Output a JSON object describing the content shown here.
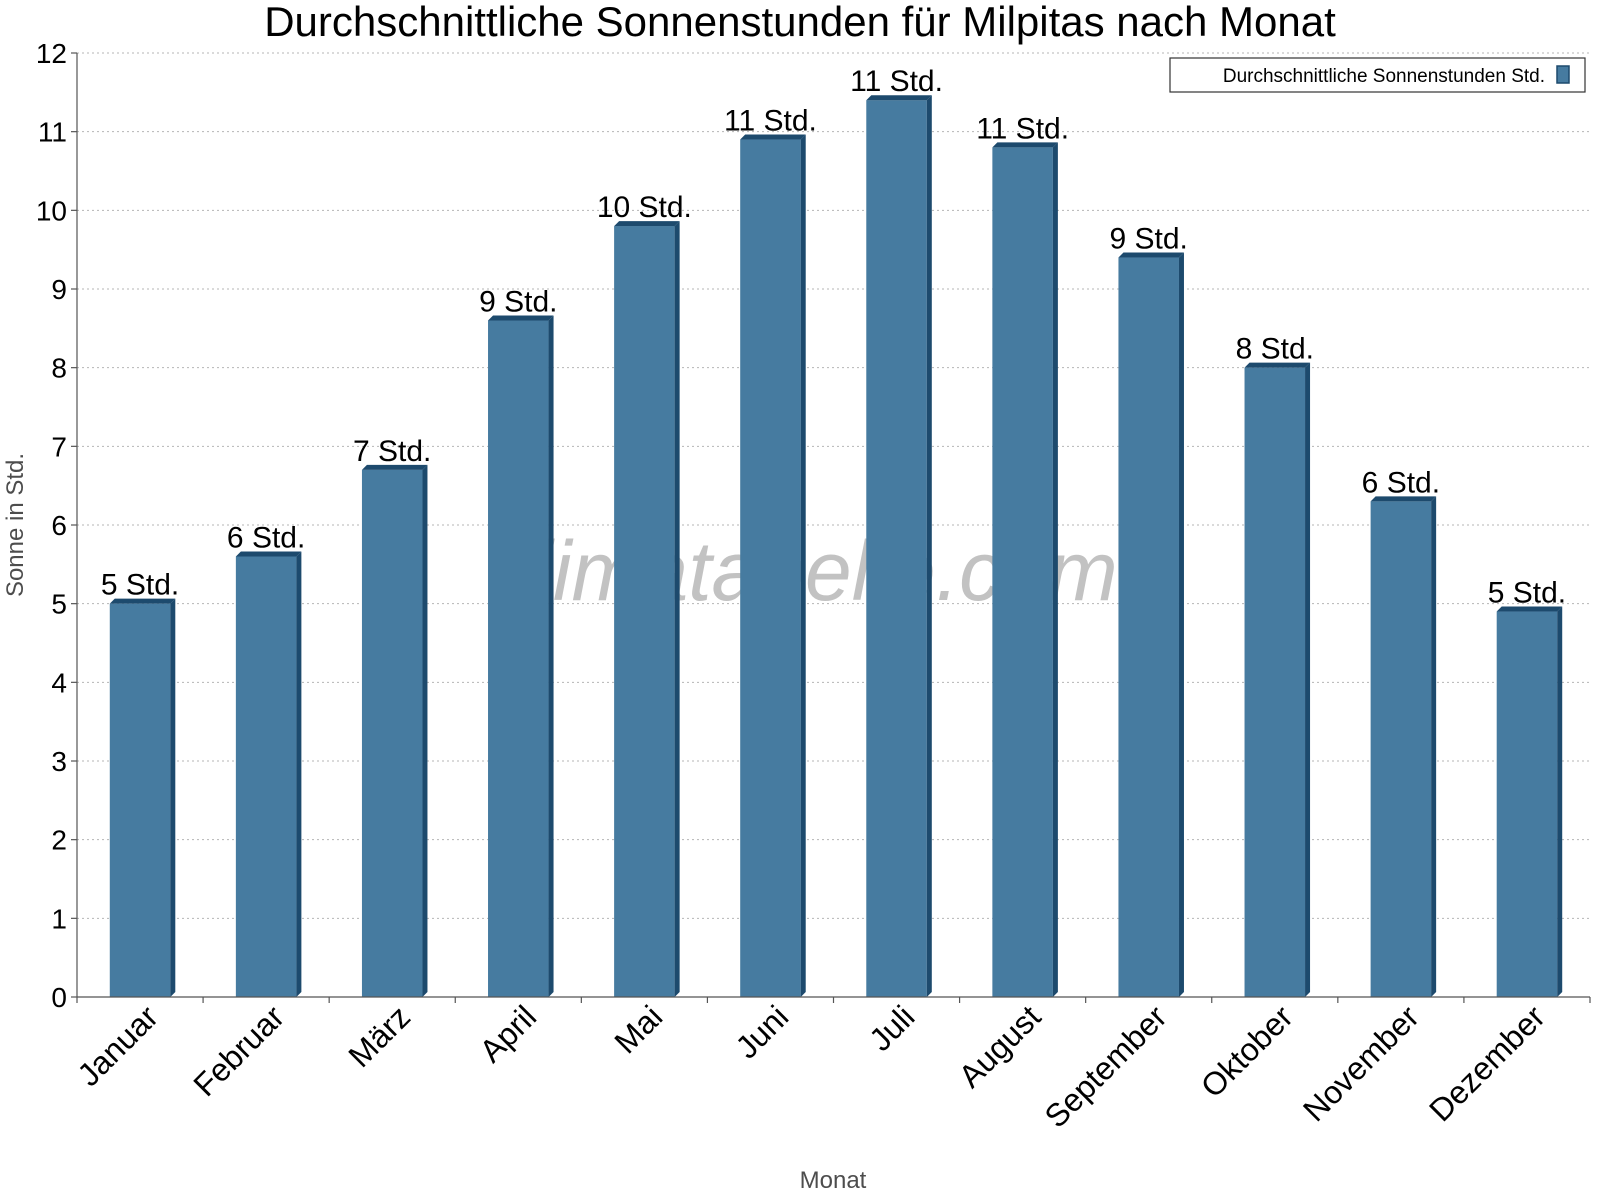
{
  "chart_data": {
    "type": "bar",
    "title": "Durchschnittliche Sonnenstunden für Milpitas nach Monat",
    "xlabel": "Monat",
    "ylabel": "Sonne in Std.",
    "ylim": [
      0,
      12
    ],
    "yticks": [
      "0",
      "1",
      "2",
      "3",
      "4",
      "5",
      "6",
      "7",
      "8",
      "9",
      "10",
      "11",
      "12"
    ],
    "grid": true,
    "legend_position": "top-right",
    "watermark": "klimatabelle.com",
    "categories": [
      "Januar",
      "Februar",
      "März",
      "April",
      "Mai",
      "Juni",
      "Juli",
      "August",
      "September",
      "Oktober",
      "November",
      "Dezember"
    ],
    "series": [
      {
        "name": "Durchschnittliche Sonnenstunden Std.",
        "color": "#467ba0",
        "values": [
          5.0,
          5.6,
          6.7,
          8.6,
          9.8,
          10.9,
          11.4,
          10.8,
          9.4,
          8.0,
          6.3,
          4.9
        ],
        "labels": [
          "5 Std.",
          "6 Std.",
          "7 Std.",
          "9 Std.",
          "10 Std.",
          "11 Std.",
          "11 Std.",
          "11 Std.",
          "9 Std.",
          "8 Std.",
          "6 Std.",
          "5 Std."
        ]
      }
    ]
  }
}
